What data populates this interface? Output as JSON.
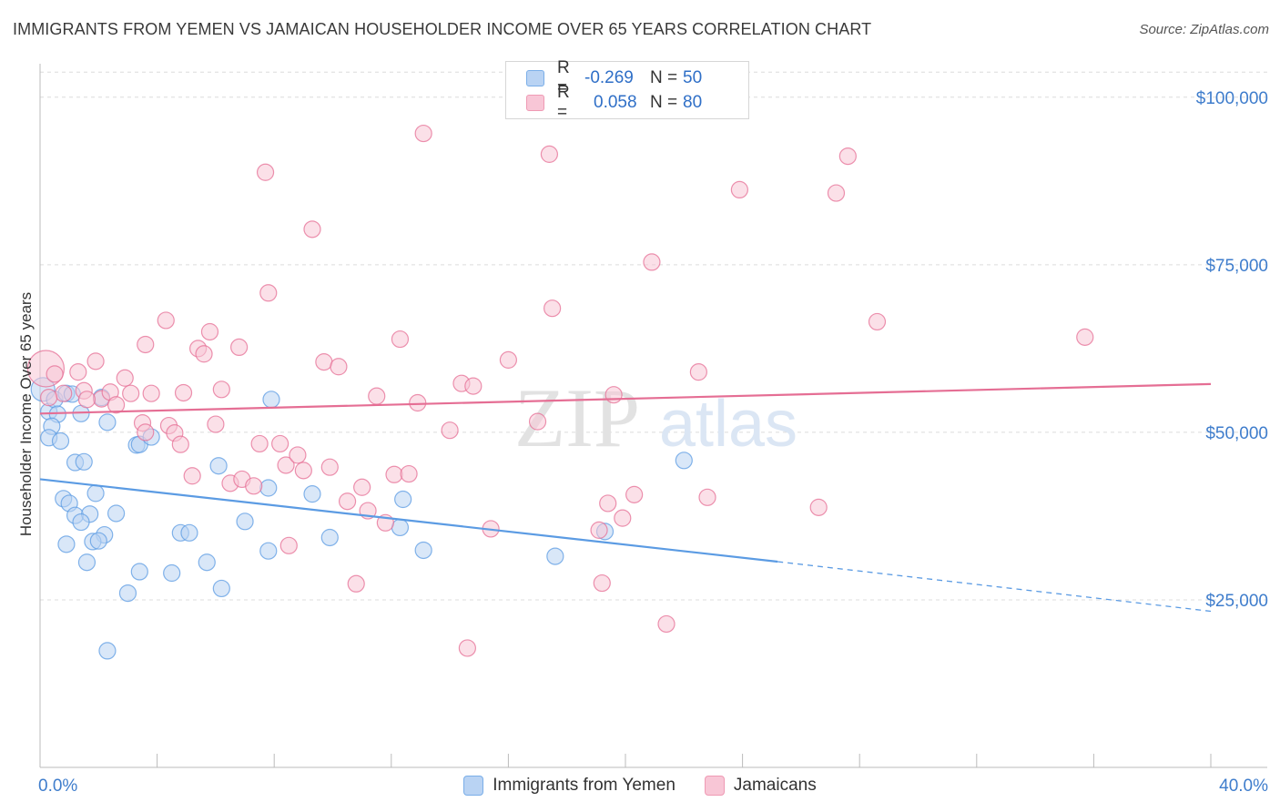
{
  "title": "IMMIGRANTS FROM YEMEN VS JAMAICAN HOUSEHOLDER INCOME OVER 65 YEARS CORRELATION CHART",
  "source": "Source: ZipAtlas.com",
  "watermark": {
    "zip": "ZIP",
    "atlas": "atlas"
  },
  "legend": {
    "rows": [
      {
        "r_label": "R =",
        "r_value": "-0.269",
        "n_label": "N =",
        "n_value": "50",
        "color": "#7aaee8",
        "fill": "#b9d3f3"
      },
      {
        "r_label": "R =",
        "r_value": "0.058",
        "n_label": "N =",
        "n_value": "80",
        "color": "#ef9ab4",
        "fill": "#f8c6d6"
      }
    ]
  },
  "bottom_legend": [
    {
      "label": "Immigrants from Yemen",
      "color": "#7aaee8",
      "fill": "#b9d3f3"
    },
    {
      "label": "Jamaicans",
      "color": "#ef9ab4",
      "fill": "#f8c6d6"
    }
  ],
  "chart_data": {
    "type": "scatter",
    "title": "IMMIGRANTS FROM YEMEN VS JAMAICAN HOUSEHOLDER INCOME OVER 65 YEARS CORRELATION CHART",
    "xlabel": "",
    "ylabel": "Householder Income Over 65 years",
    "xlim": [
      0,
      40
    ],
    "ylim": [
      0,
      105000
    ],
    "x_tick_labels": [
      "0.0%",
      "40.0%"
    ],
    "y_ticks": [
      25000,
      50000,
      75000,
      100000
    ],
    "y_tick_labels": [
      "$25,000",
      "$50,000",
      "$75,000",
      "$100,000"
    ],
    "grid": true,
    "legend_position": "top-center",
    "series": [
      {
        "name": "Immigrants from Yemen",
        "color": "#5b9be3",
        "fill": "#b9d3f3",
        "trend": {
          "x": [
            0,
            25.2
          ],
          "y": [
            43000,
            30700
          ],
          "dashed_to": [
            40,
            23300
          ]
        },
        "points": [
          [
            0.1,
            56400
          ],
          [
            0.3,
            53100
          ],
          [
            0.5,
            54900
          ],
          [
            0.6,
            52700
          ],
          [
            0.4,
            50900
          ],
          [
            0.3,
            49200
          ],
          [
            0.7,
            48700
          ],
          [
            0.9,
            55800
          ],
          [
            1.4,
            52800
          ],
          [
            2.1,
            55200
          ],
          [
            2.3,
            51500
          ],
          [
            1.2,
            45500
          ],
          [
            1.5,
            45600
          ],
          [
            0.8,
            40100
          ],
          [
            1.0,
            39400
          ],
          [
            1.9,
            40900
          ],
          [
            1.2,
            37600
          ],
          [
            1.7,
            37800
          ],
          [
            1.4,
            36600
          ],
          [
            0.9,
            33300
          ],
          [
            2.6,
            37900
          ],
          [
            2.2,
            34700
          ],
          [
            1.8,
            33700
          ],
          [
            2.0,
            33800
          ],
          [
            1.6,
            30600
          ],
          [
            3.3,
            48100
          ],
          [
            3.4,
            48200
          ],
          [
            3.8,
            49300
          ],
          [
            3.4,
            29200
          ],
          [
            4.5,
            29000
          ],
          [
            4.8,
            35000
          ],
          [
            5.1,
            35000
          ],
          [
            5.7,
            30600
          ],
          [
            6.1,
            45000
          ],
          [
            6.2,
            26700
          ],
          [
            3.0,
            26000
          ],
          [
            7.0,
            36700
          ],
          [
            7.8,
            41700
          ],
          [
            7.8,
            32300
          ],
          [
            7.9,
            54900
          ],
          [
            9.3,
            40800
          ],
          [
            9.9,
            34300
          ],
          [
            12.3,
            35800
          ],
          [
            12.4,
            40000
          ],
          [
            13.1,
            32400
          ],
          [
            17.6,
            31500
          ],
          [
            19.3,
            35200
          ],
          [
            22.0,
            45800
          ],
          [
            2.3,
            17400
          ],
          [
            1.1,
            55700
          ]
        ]
      },
      {
        "name": "Jamaicans",
        "color": "#e56e94",
        "fill": "#f8c6d6",
        "trend": {
          "x": [
            0,
            40
          ],
          "y": [
            52800,
            57200
          ]
        },
        "points": [
          [
            0.2,
            59500
          ],
          [
            0.5,
            58700
          ],
          [
            0.8,
            55800
          ],
          [
            1.3,
            59000
          ],
          [
            1.5,
            56200
          ],
          [
            1.9,
            60600
          ],
          [
            2.1,
            55000
          ],
          [
            2.4,
            56000
          ],
          [
            1.6,
            54900
          ],
          [
            2.6,
            54100
          ],
          [
            2.9,
            58100
          ],
          [
            3.1,
            55800
          ],
          [
            3.5,
            51400
          ],
          [
            3.6,
            50000
          ],
          [
            3.8,
            55800
          ],
          [
            3.6,
            63100
          ],
          [
            4.3,
            66700
          ],
          [
            4.4,
            51000
          ],
          [
            4.6,
            49900
          ],
          [
            4.8,
            48200
          ],
          [
            4.9,
            55900
          ],
          [
            5.2,
            43500
          ],
          [
            5.4,
            62500
          ],
          [
            5.6,
            61700
          ],
          [
            5.8,
            65000
          ],
          [
            6.0,
            51200
          ],
          [
            6.2,
            56400
          ],
          [
            6.5,
            42400
          ],
          [
            6.8,
            62700
          ],
          [
            6.9,
            43000
          ],
          [
            7.3,
            42000
          ],
          [
            7.5,
            48300
          ],
          [
            7.7,
            88800
          ],
          [
            7.8,
            70800
          ],
          [
            8.2,
            48300
          ],
          [
            8.4,
            45100
          ],
          [
            8.5,
            33100
          ],
          [
            8.8,
            46600
          ],
          [
            9.0,
            44300
          ],
          [
            9.3,
            80300
          ],
          [
            9.7,
            60500
          ],
          [
            9.9,
            44800
          ],
          [
            10.2,
            59800
          ],
          [
            10.5,
            39700
          ],
          [
            10.8,
            27400
          ],
          [
            11.0,
            41800
          ],
          [
            11.2,
            38300
          ],
          [
            11.5,
            55400
          ],
          [
            11.8,
            36500
          ],
          [
            12.1,
            43700
          ],
          [
            12.3,
            63900
          ],
          [
            12.6,
            43800
          ],
          [
            12.9,
            54400
          ],
          [
            13.1,
            94600
          ],
          [
            14.0,
            50300
          ],
          [
            14.4,
            57300
          ],
          [
            14.8,
            56900
          ],
          [
            14.6,
            17800
          ],
          [
            15.4,
            35600
          ],
          [
            16.0,
            60800
          ],
          [
            17.0,
            51600
          ],
          [
            17.4,
            91500
          ],
          [
            17.5,
            68500
          ],
          [
            19.1,
            35400
          ],
          [
            19.2,
            27500
          ],
          [
            19.4,
            39400
          ],
          [
            19.9,
            37200
          ],
          [
            20.3,
            40700
          ],
          [
            20.9,
            75400
          ],
          [
            21.4,
            21400
          ],
          [
            22.5,
            59000
          ],
          [
            22.8,
            40300
          ],
          [
            23.9,
            86200
          ],
          [
            26.6,
            38800
          ],
          [
            27.2,
            85700
          ],
          [
            27.6,
            91200
          ],
          [
            28.6,
            66500
          ],
          [
            35.7,
            64200
          ],
          [
            19.6,
            55600
          ],
          [
            0.3,
            55200
          ]
        ]
      }
    ]
  }
}
